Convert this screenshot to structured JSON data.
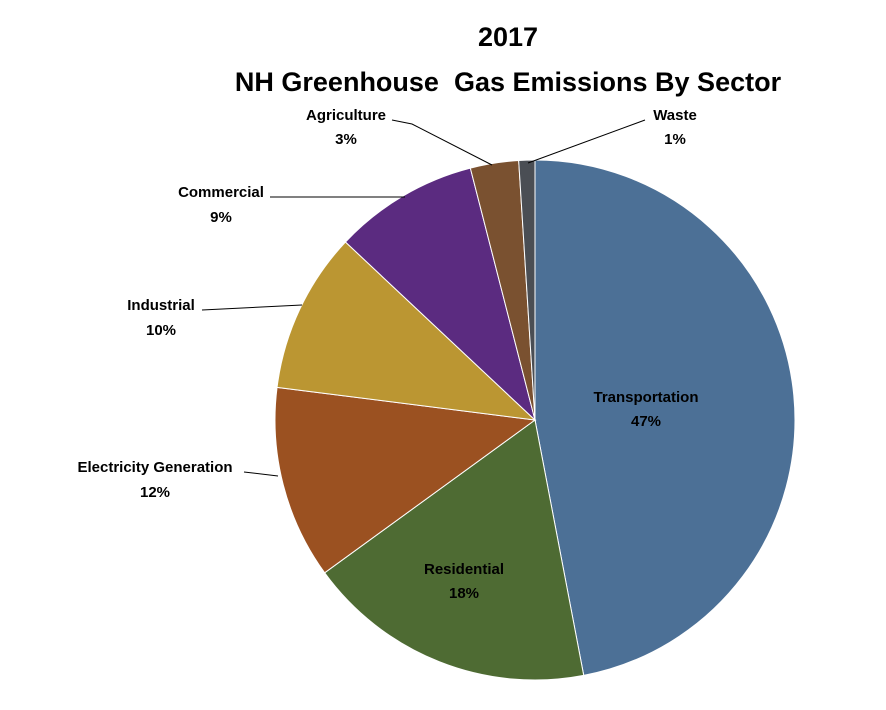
{
  "chart_data": {
    "type": "pie",
    "title_line1": "2017",
    "title_line2": "NH Greenhouse  Gas Emissions By Sector",
    "slices": [
      {
        "label": "Transportation",
        "value": 47,
        "pct_label": "47%",
        "color": "#4C7096"
      },
      {
        "label": "Residential",
        "value": 18,
        "pct_label": "18%",
        "color": "#4E6B33"
      },
      {
        "label": "Electricity Generation",
        "value": 12,
        "pct_label": "12%",
        "color": "#9B5121"
      },
      {
        "label": "Industrial",
        "value": 10,
        "pct_label": "10%",
        "color": "#BB9632"
      },
      {
        "label": "Commercial",
        "value": 9,
        "pct_label": "9%",
        "color": "#5B2B80"
      },
      {
        "label": "Agriculture",
        "value": 3,
        "pct_label": "3%",
        "color": "#7A5130"
      },
      {
        "label": "Waste",
        "value": 1,
        "pct_label": "1%",
        "color": "#4A4E54"
      }
    ]
  }
}
